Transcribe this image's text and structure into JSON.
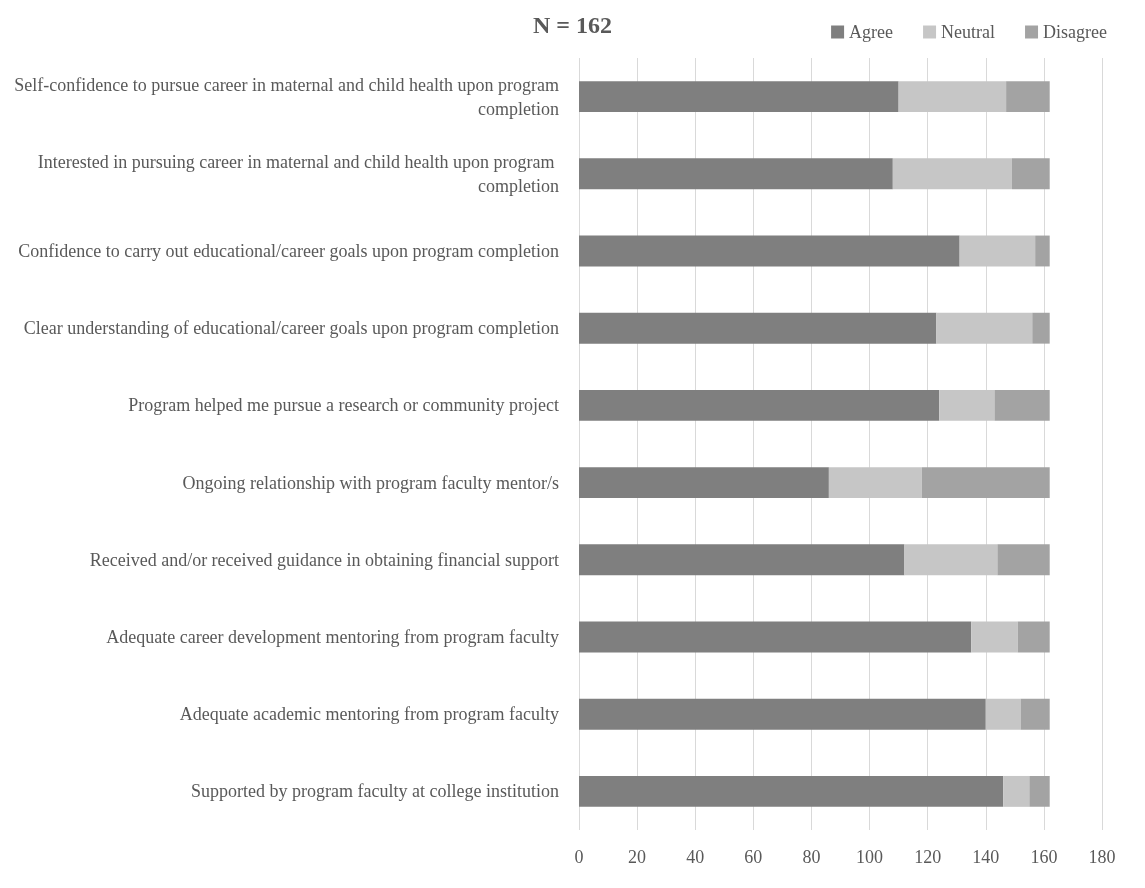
{
  "chart_data": {
    "type": "bar",
    "orientation": "horizontal",
    "stacked": true,
    "title": "N = 162",
    "categories": [
      "Self-confidence to pursue career in maternal and child health upon program completion",
      "Interested in pursuing career in maternal and child health upon program completion",
      "Confidence to carry out educational/career goals upon program completion",
      "Clear understanding of educational/career goals upon program completion",
      "Program helped me pursue a research or community project",
      "Ongoing relationship with program faculty mentor/s",
      "Received and/or received guidance in obtaining financial support",
      "Adequate career development mentoring from program faculty",
      "Adequate academic mentoring from program faculty",
      "Supported by program faculty at college institution"
    ],
    "series": [
      {
        "name": "Agree",
        "color": "#7f7f7f",
        "values": [
          110,
          108,
          131,
          123,
          124,
          86,
          112,
          135,
          140,
          146
        ]
      },
      {
        "name": "Neutral",
        "color": "#c6c6c6",
        "values": [
          37,
          41,
          26,
          33,
          19,
          32,
          32,
          16,
          12,
          9
        ]
      },
      {
        "name": "Disagree",
        "color": "#a3a3a3",
        "values": [
          15,
          13,
          5,
          6,
          19,
          44,
          18,
          11,
          10,
          7
        ]
      }
    ],
    "xlim": [
      0,
      180
    ],
    "xticks": [
      0,
      20,
      40,
      60,
      80,
      100,
      120,
      140,
      160,
      180
    ],
    "grid": "x",
    "legend": "top right"
  }
}
